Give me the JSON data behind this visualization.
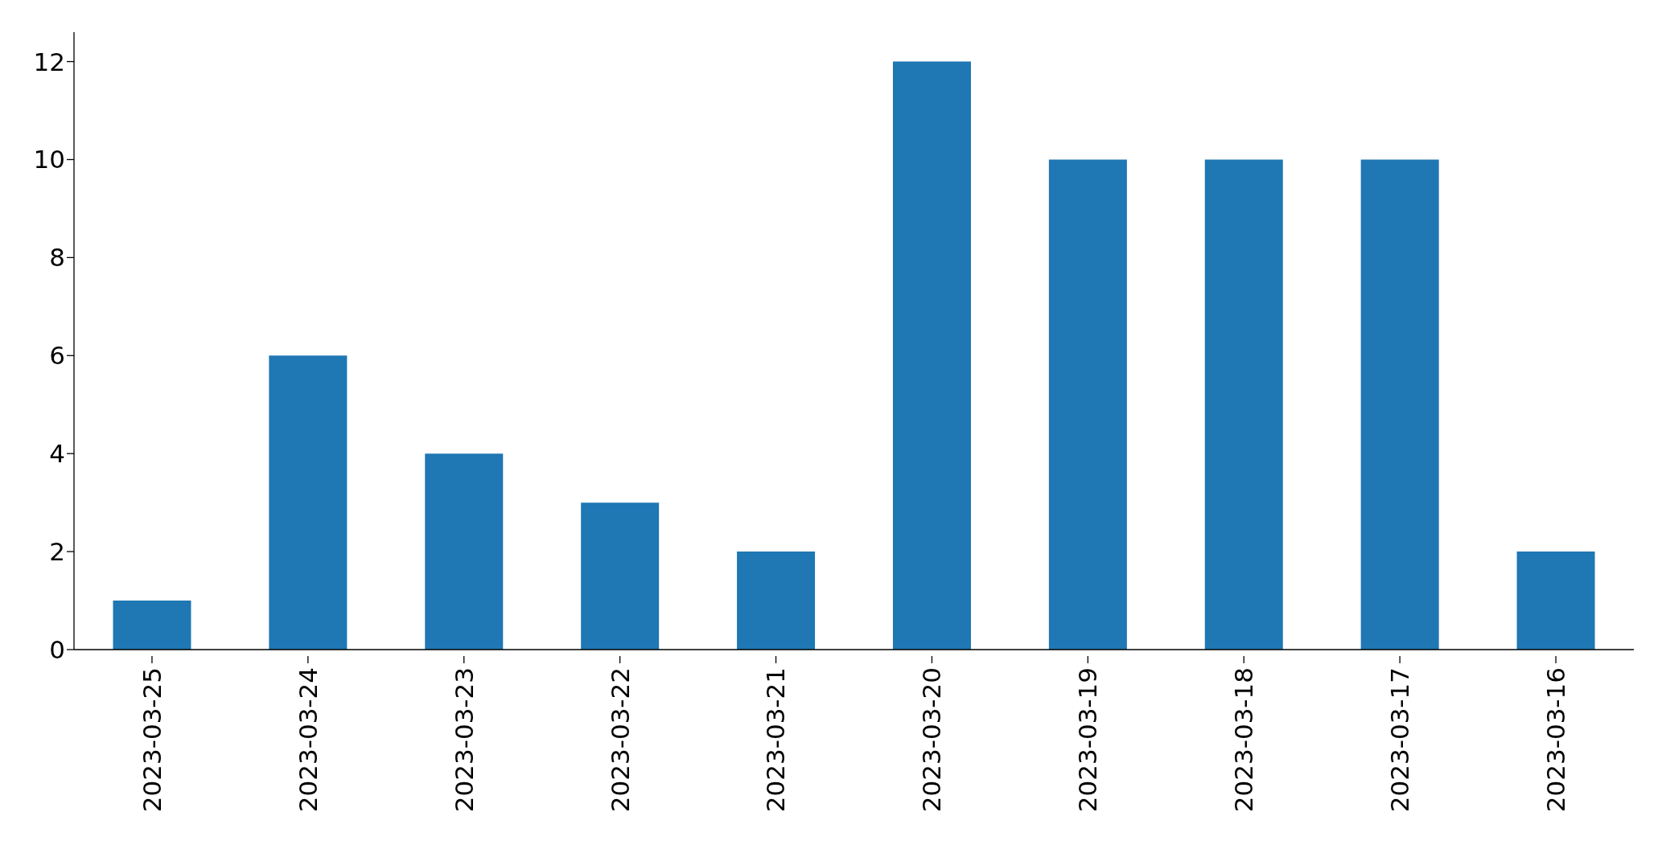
{
  "chart_data": {
    "type": "bar",
    "categories": [
      "2023-03-25",
      "2023-03-24",
      "2023-03-23",
      "2023-03-22",
      "2023-03-21",
      "2023-03-20",
      "2023-03-19",
      "2023-03-18",
      "2023-03-17",
      "2023-03-16"
    ],
    "values": [
      1,
      6,
      4,
      3,
      2,
      12,
      10,
      10,
      10,
      2
    ],
    "color": "#1f77b4",
    "ylim": [
      0,
      12.6
    ],
    "yticks": [
      0,
      2,
      4,
      6,
      8,
      10,
      12
    ],
    "grid": false
  }
}
